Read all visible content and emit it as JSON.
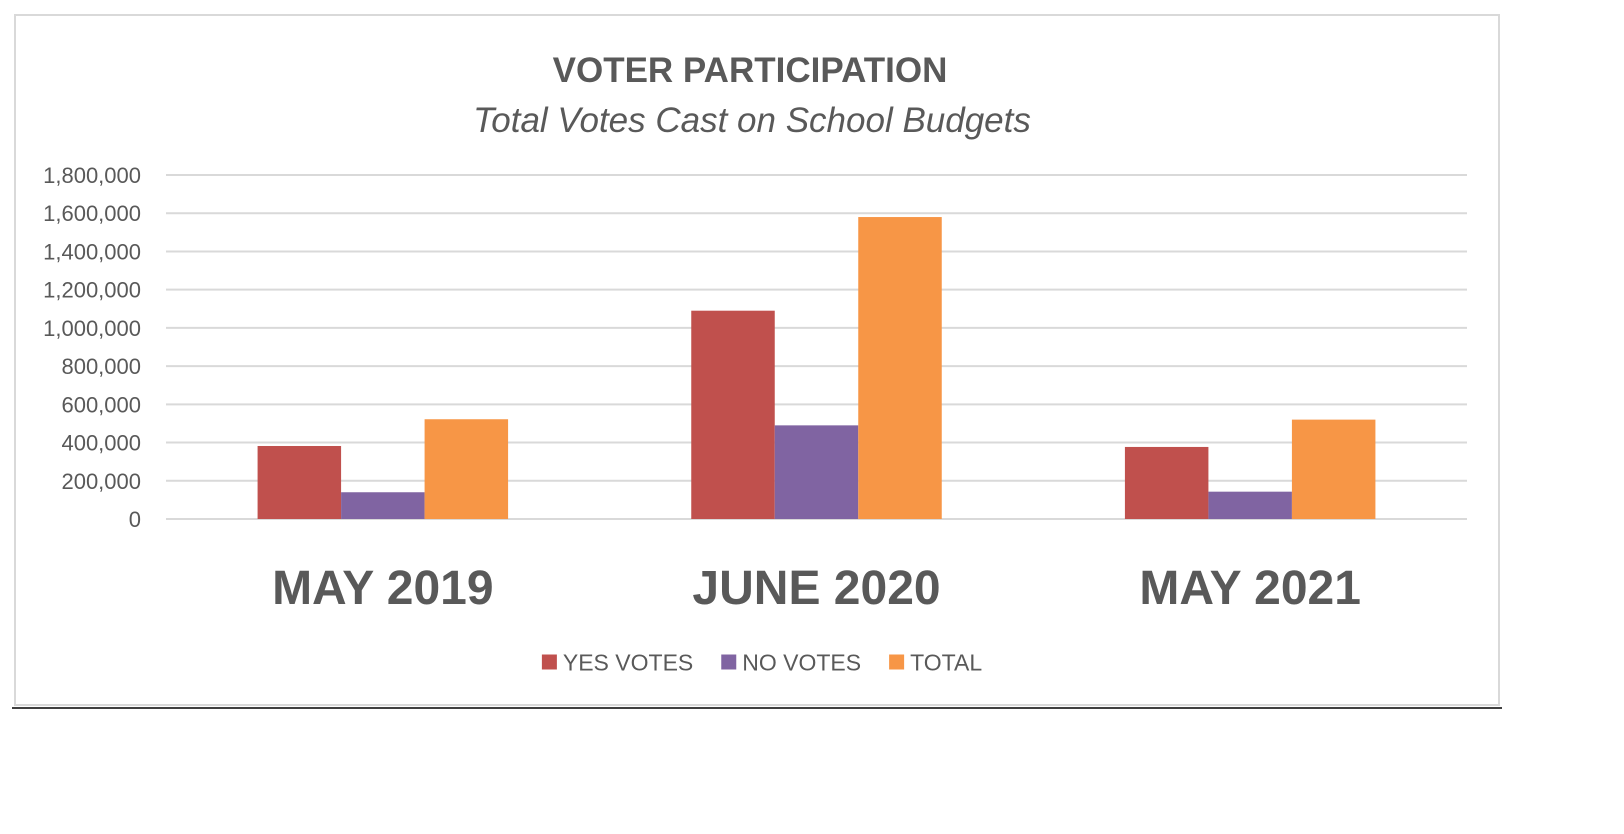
{
  "chart_data": {
    "type": "bar",
    "title": "VOTER PARTICIPATION",
    "subtitle": "Total Votes Cast on School Budgets",
    "xlabel": "",
    "ylabel": "",
    "categories": [
      "MAY 2019",
      "JUNE 2020",
      "MAY 2021"
    ],
    "series": [
      {
        "name": "YES VOTES",
        "color": "#c0504d",
        "values": [
          382000,
          1090000,
          377000
        ]
      },
      {
        "name": "NO VOTES",
        "color": "#8064a2",
        "values": [
          140000,
          490000,
          143000
        ]
      },
      {
        "name": "TOTAL",
        "color": "#f79646",
        "values": [
          522000,
          1580000,
          520000
        ]
      }
    ],
    "ylim": [
      0,
      1800000
    ],
    "yticks": [
      0,
      200000,
      400000,
      600000,
      800000,
      1000000,
      1200000,
      1400000,
      1600000,
      1800000
    ],
    "ytick_labels": [
      "0",
      "200,000",
      "400,000",
      "600,000",
      "800,000",
      "1,000,000",
      "1,200,000",
      "1,400,000",
      "1,600,000",
      "1,800,000"
    ],
    "grid": true,
    "legend_position": "bottom"
  }
}
